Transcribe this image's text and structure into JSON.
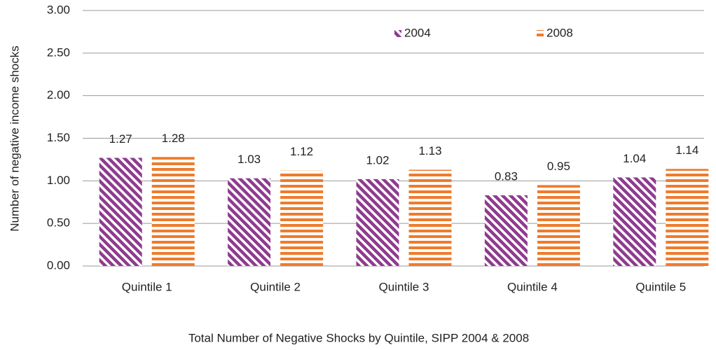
{
  "chart_data": {
    "type": "bar",
    "title": "Total Number of Negative Shocks by Quintile, SIPP 2004 & 2008",
    "y_label": "Number of negative income shocks",
    "categories": [
      "Quintile 1",
      "Quintile 2",
      "Quintile 3",
      "Quintile 4",
      "Quintile 5"
    ],
    "series": [
      {
        "name": "2004",
        "color": "#8e3b8e",
        "pattern": "diagonal",
        "values": [
          1.27,
          1.03,
          1.02,
          0.83,
          1.04
        ]
      },
      {
        "name": "2008",
        "color": "#ef7b2c",
        "pattern": "horizontal",
        "values": [
          1.28,
          1.12,
          1.13,
          0.95,
          1.14
        ]
      }
    ],
    "ylim": [
      0,
      3
    ],
    "yticks": [
      {
        "value": 0,
        "label": "0.00"
      },
      {
        "value": 0.5,
        "label": "0.50"
      },
      {
        "value": 1,
        "label": "1.00"
      },
      {
        "value": 1.5,
        "label": "1.50"
      },
      {
        "value": 2,
        "label": "2.00"
      },
      {
        "value": 2.5,
        "label": "2.50"
      },
      {
        "value": 3,
        "label": "3.00"
      }
    ],
    "grid": true,
    "legend": "top"
  }
}
